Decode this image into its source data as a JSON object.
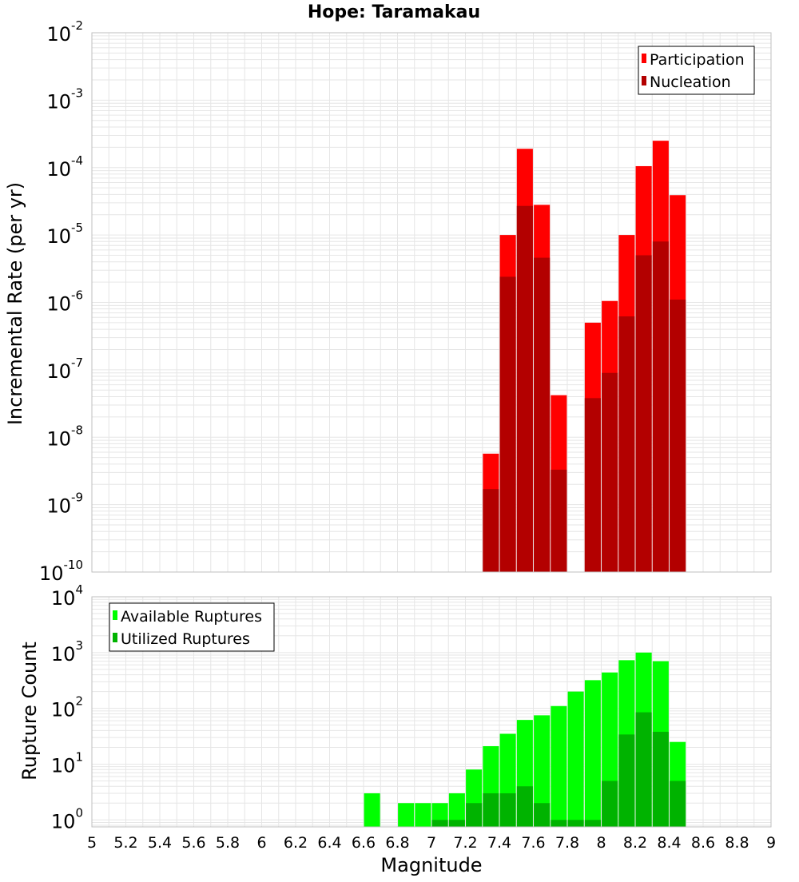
{
  "colors": {
    "participation": "#ff0000",
    "nucleation": "#b30000",
    "available": "#00ff00",
    "utilized": "#00b300",
    "grid": "#e6e6e6",
    "frame": "#bfbfbf"
  },
  "chart_data": [
    {
      "type": "bar",
      "title": "Hope: Taramakau",
      "ylabel": "Incremental Rate (per yr)",
      "xlabel": "",
      "xlim": [
        5,
        9
      ],
      "ylim": [
        1e-10,
        0.01
      ],
      "yscale": "log",
      "ytick_labels": [
        {
          "base": "10",
          "exp": "-10"
        },
        {
          "base": "10",
          "exp": "-9"
        },
        {
          "base": "10",
          "exp": "-8"
        },
        {
          "base": "10",
          "exp": "-7"
        },
        {
          "base": "10",
          "exp": "-6"
        },
        {
          "base": "10",
          "exp": "-5"
        },
        {
          "base": "10",
          "exp": "-4"
        },
        {
          "base": "10",
          "exp": "-3"
        },
        {
          "base": "10",
          "exp": "-2"
        }
      ],
      "grid": true,
      "legend_position": "top-right",
      "x": [
        7.35,
        7.45,
        7.55,
        7.65,
        7.75,
        7.85,
        7.95,
        8.05,
        8.15,
        8.25,
        8.35,
        8.45
      ],
      "series": [
        {
          "name": "Participation",
          "values": [
            5.7e-09,
            1e-05,
            0.00019,
            2.8e-05,
            4.2e-08,
            null,
            5e-07,
            1.05e-06,
            1e-05,
            0.000105,
            0.00025,
            3.9e-05
          ]
        },
        {
          "name": "Nucleation",
          "values": [
            1.7e-09,
            2.4e-06,
            2.7e-05,
            4.6e-06,
            3.3e-09,
            null,
            3.8e-08,
            9e-08,
            6.2e-07,
            5e-06,
            8e-06,
            1.1e-06
          ]
        }
      ]
    },
    {
      "type": "bar",
      "title": "",
      "ylabel": "Rupture Count",
      "xlabel": "Magnitude",
      "xlim": [
        5,
        9
      ],
      "ylim": [
        0.75,
        10000
      ],
      "yscale": "log",
      "ytick_labels": [
        {
          "base": "10",
          "exp": "0"
        },
        {
          "base": "10",
          "exp": "1"
        },
        {
          "base": "10",
          "exp": "2"
        },
        {
          "base": "10",
          "exp": "3"
        },
        {
          "base": "10",
          "exp": "4"
        }
      ],
      "xtick_labels": [
        "5",
        "5.2",
        "5.4",
        "5.6",
        "5.8",
        "6",
        "6.2",
        "6.4",
        "6.6",
        "6.8",
        "7",
        "7.2",
        "7.4",
        "7.6",
        "7.8",
        "8",
        "8.2",
        "8.4",
        "8.6",
        "8.8",
        "9"
      ],
      "grid": true,
      "legend_position": "top-left",
      "x": [
        6.65,
        6.75,
        6.85,
        6.95,
        7.05,
        7.15,
        7.25,
        7.35,
        7.45,
        7.55,
        7.65,
        7.75,
        7.85,
        7.95,
        8.05,
        8.15,
        8.25,
        8.35,
        8.45
      ],
      "series": [
        {
          "name": "Available Ruptures",
          "values": [
            3,
            null,
            2,
            2,
            2,
            3,
            8,
            21,
            35,
            62,
            75,
            110,
            200,
            320,
            440,
            730,
            1000,
            700,
            25
          ]
        },
        {
          "name": "Utilized Ruptures",
          "values": [
            null,
            null,
            null,
            null,
            1,
            1,
            2,
            3,
            3,
            4,
            2,
            1,
            1,
            1,
            5,
            34,
            85,
            38,
            5
          ]
        }
      ]
    }
  ]
}
